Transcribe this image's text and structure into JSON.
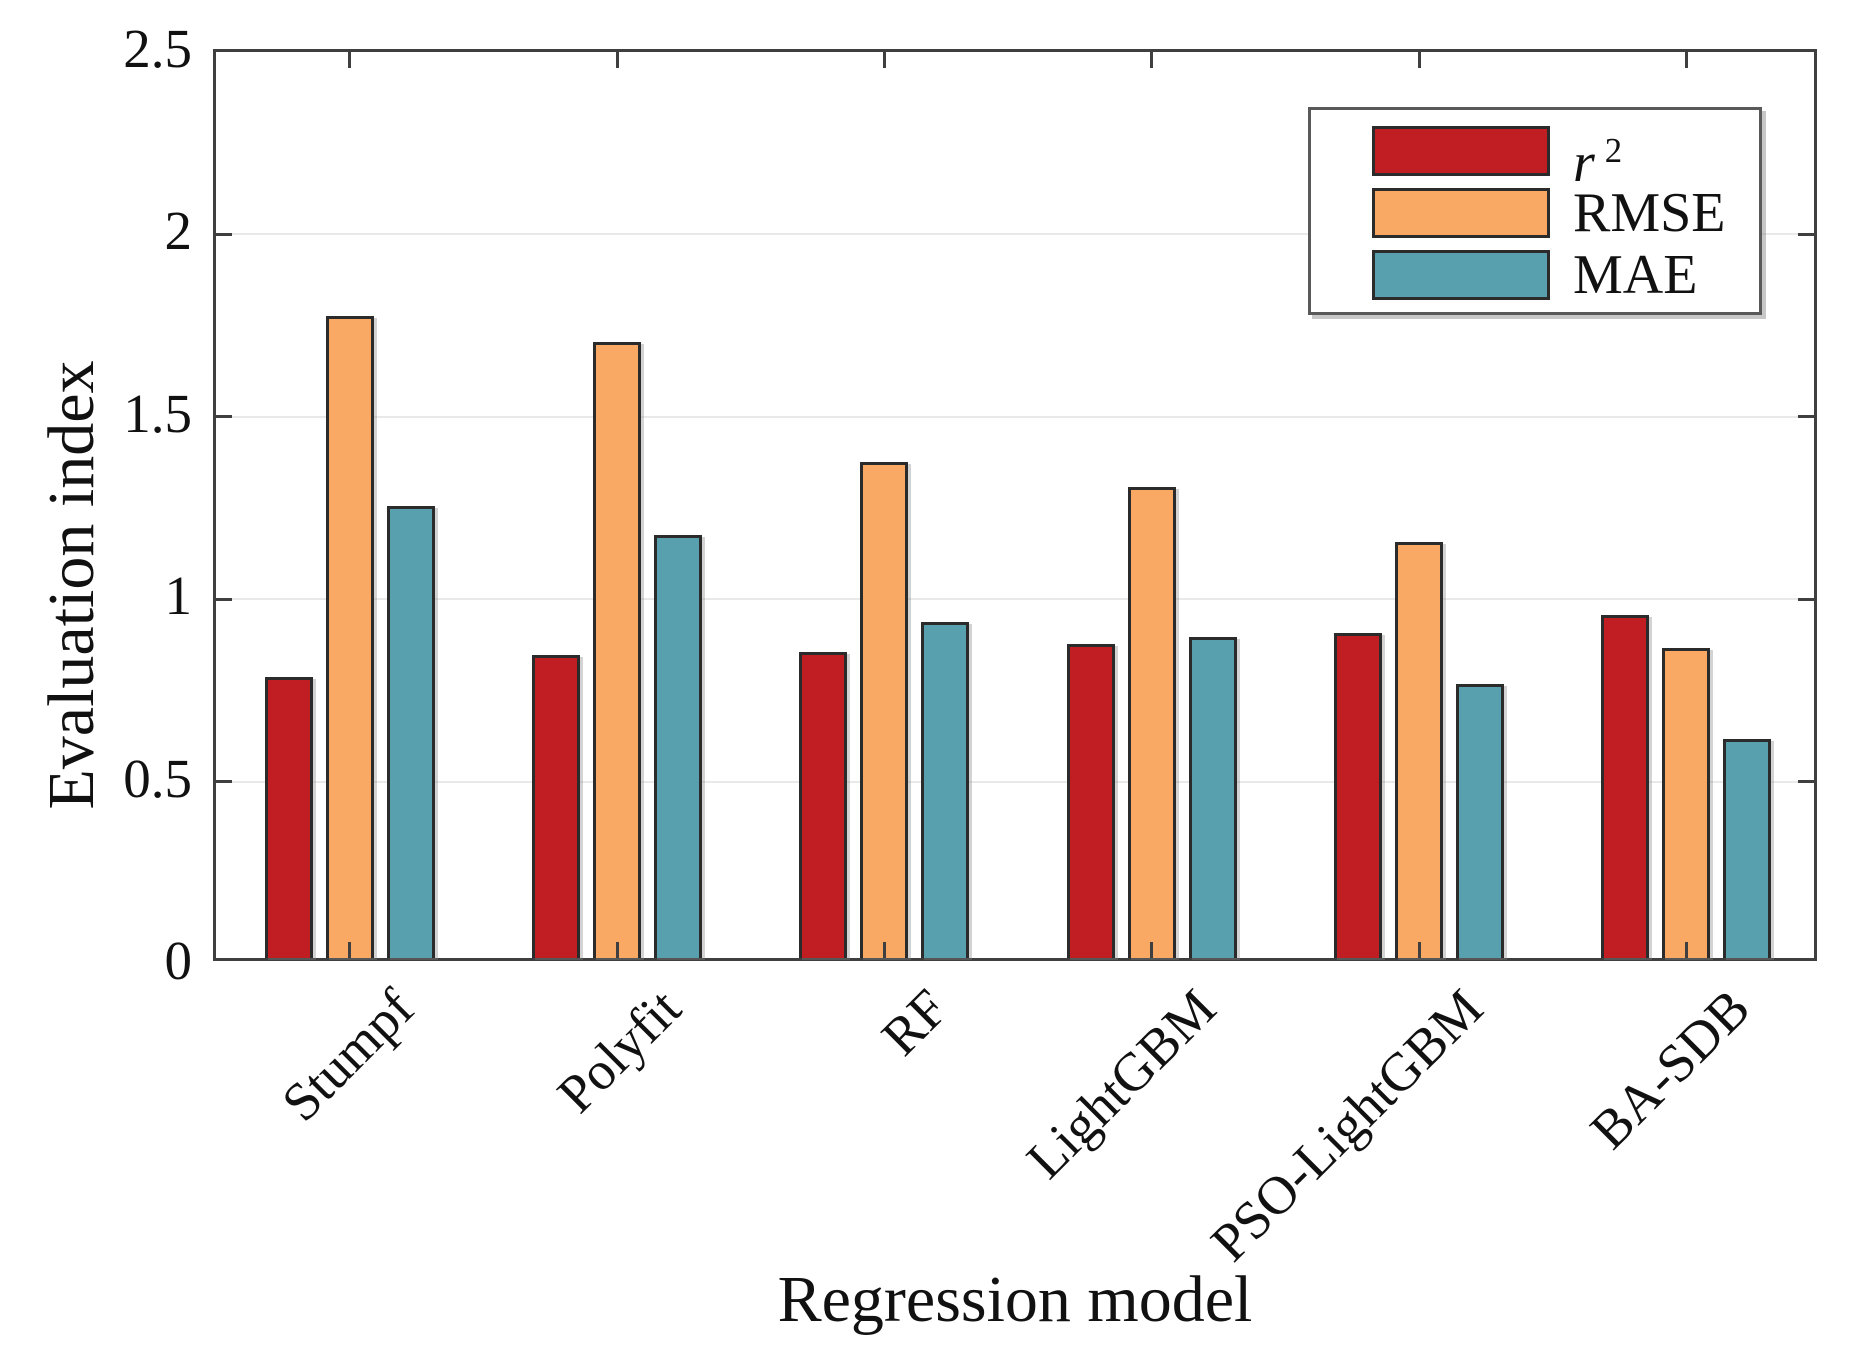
{
  "figure": {
    "background": "#ffffff"
  },
  "chart_data": {
    "type": "bar",
    "title": "",
    "xlabel": "Regression model",
    "ylabel": "Evaluation index",
    "categories": [
      "Stumpf",
      "Polyfit",
      "RF",
      "LightGBM",
      "PSO-LightGBM",
      "BA-SDB"
    ],
    "series": [
      {
        "name": "r²",
        "color": "#c11e24",
        "values": [
          0.77,
          0.83,
          0.84,
          0.86,
          0.89,
          0.94
        ]
      },
      {
        "name": "RMSE",
        "color": "#f9a963",
        "values": [
          1.76,
          1.69,
          1.36,
          1.29,
          1.14,
          0.85
        ]
      },
      {
        "name": "MAE",
        "color": "#58a0ad",
        "values": [
          1.24,
          1.16,
          0.92,
          0.88,
          0.75,
          0.6
        ]
      }
    ],
    "ylim": [
      0,
      2.5
    ],
    "y_ticks": [
      "0",
      "0.5",
      "1",
      "1.5",
      "2",
      "2.5"
    ],
    "y_gridlines": [
      0.5,
      1,
      1.5,
      2
    ],
    "grid": "horizontal",
    "legend_position": "top-right",
    "bar_outline_color": "#2b2b2b",
    "axis_color": "#3f3f3f",
    "grid_color": "#e9e9e9"
  },
  "legend": {
    "items": [
      {
        "text": "r",
        "sup": "2"
      },
      {
        "text": "RMSE",
        "sup": ""
      },
      {
        "text": "MAE",
        "sup": ""
      }
    ]
  }
}
